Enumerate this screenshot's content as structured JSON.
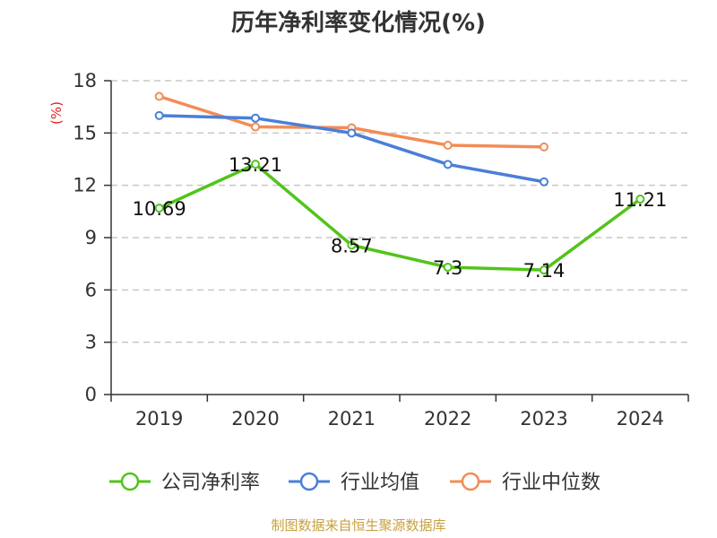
{
  "chart_data": {
    "type": "line",
    "title": "历年净利率变化情况(%)",
    "ylabel": "(%)",
    "xlabel": "",
    "categories": [
      "2019",
      "2020",
      "2021",
      "2022",
      "2023",
      "2024"
    ],
    "ylim": [
      0,
      18
    ],
    "yticks": [
      0,
      3,
      6,
      9,
      12,
      15,
      18
    ],
    "grid": true,
    "legend_position": "bottom",
    "series": [
      {
        "name": "公司净利率",
        "color": "#52c41a",
        "show_labels": true,
        "labels": [
          "10.69",
          "13.21",
          "8.57",
          "7.3",
          "7.14",
          "11.21"
        ],
        "values": [
          10.69,
          13.21,
          8.57,
          7.3,
          7.14,
          11.21
        ]
      },
      {
        "name": "行业均值",
        "color": "#4a7fd8",
        "show_labels": false,
        "values": [
          16.0,
          15.85,
          15.0,
          13.2,
          12.2,
          null
        ]
      },
      {
        "name": "行业中位数",
        "color": "#f28c56",
        "show_labels": false,
        "values": [
          17.1,
          15.35,
          15.3,
          14.3,
          14.2,
          null
        ]
      }
    ],
    "source": "制图数据来自恒生聚源数据库"
  }
}
